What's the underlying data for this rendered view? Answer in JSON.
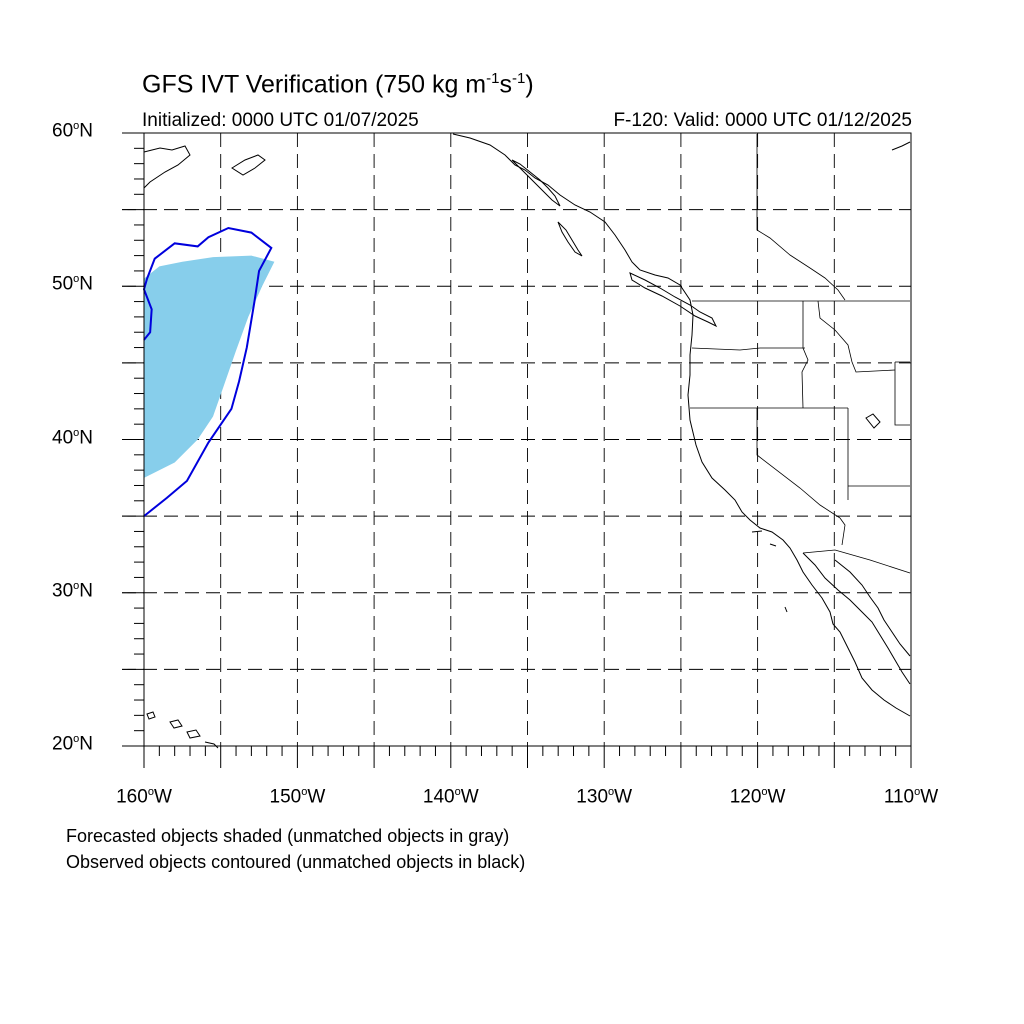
{
  "header": {
    "title_main": "GFS IVT Verification (750 kg m",
    "title_exp1": "-1",
    "title_mid": "s",
    "title_exp2": "-1",
    "title_end": ")",
    "init_text": "Initialized: 0000 UTC 01/07/2025",
    "valid_text": "F-120: Valid: 0000 UTC 01/12/2025"
  },
  "map": {
    "projection": "cylindrical equidistant",
    "lon_range": [
      -160,
      -110
    ],
    "lat_range": [
      20,
      60
    ],
    "grid": "dashed every 5 degrees",
    "lat_labels": [
      {
        "value": 60,
        "num": "60",
        "deg": "o",
        "hemi": "N"
      },
      {
        "value": 50,
        "num": "50",
        "deg": "o",
        "hemi": "N"
      },
      {
        "value": 40,
        "num": "40",
        "deg": "o",
        "hemi": "N"
      },
      {
        "value": 30,
        "num": "30",
        "deg": "o",
        "hemi": "N"
      },
      {
        "value": 20,
        "num": "20",
        "deg": "o",
        "hemi": "N"
      }
    ],
    "lon_labels": [
      {
        "value": -160,
        "num": "160",
        "deg": "o",
        "hemi": "W"
      },
      {
        "value": -150,
        "num": "150",
        "deg": "o",
        "hemi": "W"
      },
      {
        "value": -140,
        "num": "140",
        "deg": "o",
        "hemi": "W"
      },
      {
        "value": -130,
        "num": "130",
        "deg": "o",
        "hemi": "W"
      },
      {
        "value": -120,
        "num": "120",
        "deg": "o",
        "hemi": "W"
      },
      {
        "value": -110,
        "num": "110",
        "deg": "o",
        "hemi": "W"
      }
    ],
    "forecast_object": {
      "color": "#87ceeb",
      "vertices": [
        [
          -160.0,
          37.5
        ],
        [
          -158.0,
          38.5
        ],
        [
          -156.5,
          40.0
        ],
        [
          -155.5,
          41.5
        ],
        [
          -154.8,
          43.5
        ],
        [
          -154.0,
          45.8
        ],
        [
          -153.2,
          48.0
        ],
        [
          -152.3,
          50.0
        ],
        [
          -151.5,
          51.6
        ],
        [
          -153.0,
          52.0
        ],
        [
          -155.5,
          51.9
        ],
        [
          -157.5,
          51.6
        ],
        [
          -159.0,
          51.3
        ],
        [
          -160.0,
          50.5
        ],
        [
          -160.0,
          48.0
        ],
        [
          -160.0,
          44.0
        ],
        [
          -160.0,
          40.0
        ]
      ]
    },
    "observed_object": {
      "color": "#0000dd",
      "vertices": [
        [
          -160.0,
          35.0
        ],
        [
          -158.5,
          36.2
        ],
        [
          -157.2,
          37.3
        ],
        [
          -155.8,
          39.8
        ],
        [
          -154.3,
          42.0
        ],
        [
          -153.8,
          43.8
        ],
        [
          -153.3,
          46.0
        ],
        [
          -152.8,
          49.0
        ],
        [
          -152.5,
          51.0
        ],
        [
          -151.7,
          52.5
        ],
        [
          -153.0,
          53.5
        ],
        [
          -154.5,
          53.8
        ],
        [
          -155.8,
          53.2
        ],
        [
          -156.5,
          52.6
        ],
        [
          -158.0,
          52.8
        ],
        [
          -159.3,
          51.8
        ],
        [
          -159.8,
          50.5
        ],
        [
          -160.0,
          49.8
        ],
        [
          -159.5,
          48.5
        ],
        [
          -159.6,
          47.0
        ],
        [
          -160.0,
          46.5
        ]
      ]
    }
  },
  "footer": {
    "note1": "Forecasted objects shaded (unmatched objects in gray)",
    "note2": "Observed objects contoured (unmatched objects in black)"
  }
}
